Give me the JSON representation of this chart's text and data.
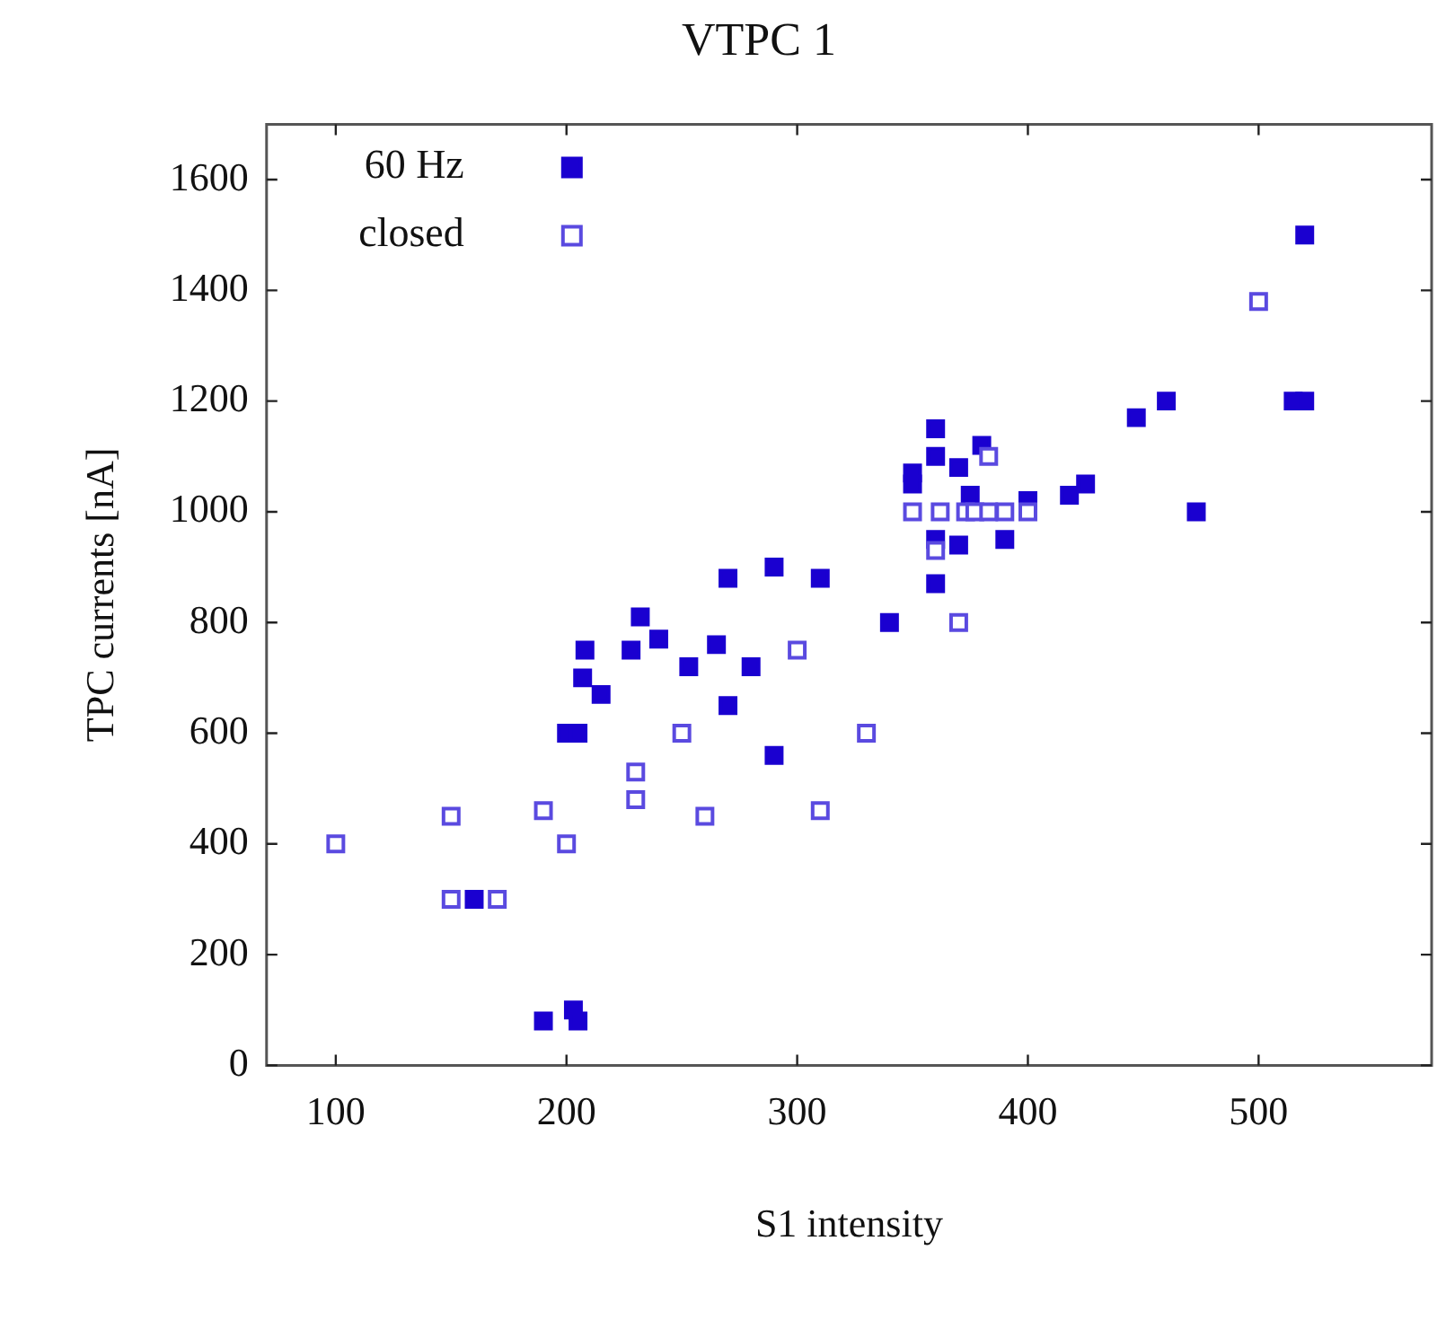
{
  "chart_data": {
    "type": "scatter",
    "title": "VTPC 1",
    "xlabel": "S1 intensity",
    "ylabel": "TPC currents [nA]",
    "xlim": [
      70,
      575
    ],
    "xticks": [
      100,
      200,
      300,
      400,
      500
    ],
    "ylim": [
      0,
      1700
    ],
    "yticks": [
      0,
      200,
      400,
      600,
      800,
      1000,
      1200,
      1400,
      1600
    ],
    "grid": false,
    "legend": "top left",
    "marker": "square",
    "series": [
      {
        "name": "60 Hz",
        "color": "#1a00d0",
        "x": [
          190,
          203,
          205,
          160,
          200,
          205,
          207,
          208,
          215,
          228,
          232,
          240,
          253,
          265,
          270,
          270,
          280,
          290,
          290,
          310,
          340,
          350,
          350,
          360,
          360,
          360,
          360,
          370,
          370,
          375,
          380,
          390,
          400,
          418,
          425,
          447,
          460,
          473,
          515,
          520,
          520
        ],
        "values": [
          80,
          100,
          80,
          300,
          600,
          600,
          700,
          750,
          670,
          750,
          810,
          770,
          720,
          760,
          880,
          650,
          720,
          900,
          560,
          880,
          800,
          1070,
          1050,
          1150,
          1100,
          950,
          870,
          1080,
          940,
          1030,
          1120,
          950,
          1020,
          1030,
          1050,
          1170,
          1200,
          1000,
          1200,
          1200,
          1500
        ]
      },
      {
        "name": "closed",
        "color": "#5a4ae0",
        "x": [
          100,
          150,
          150,
          170,
          190,
          200,
          230,
          230,
          250,
          260,
          300,
          310,
          330,
          350,
          360,
          362,
          370,
          373,
          377,
          383,
          383,
          390,
          400,
          500
        ],
        "values": [
          400,
          450,
          300,
          300,
          460,
          400,
          530,
          480,
          600,
          450,
          750,
          460,
          600,
          1000,
          930,
          1000,
          800,
          1000,
          1000,
          1100,
          1000,
          1000,
          1000,
          1380
        ]
      }
    ]
  }
}
